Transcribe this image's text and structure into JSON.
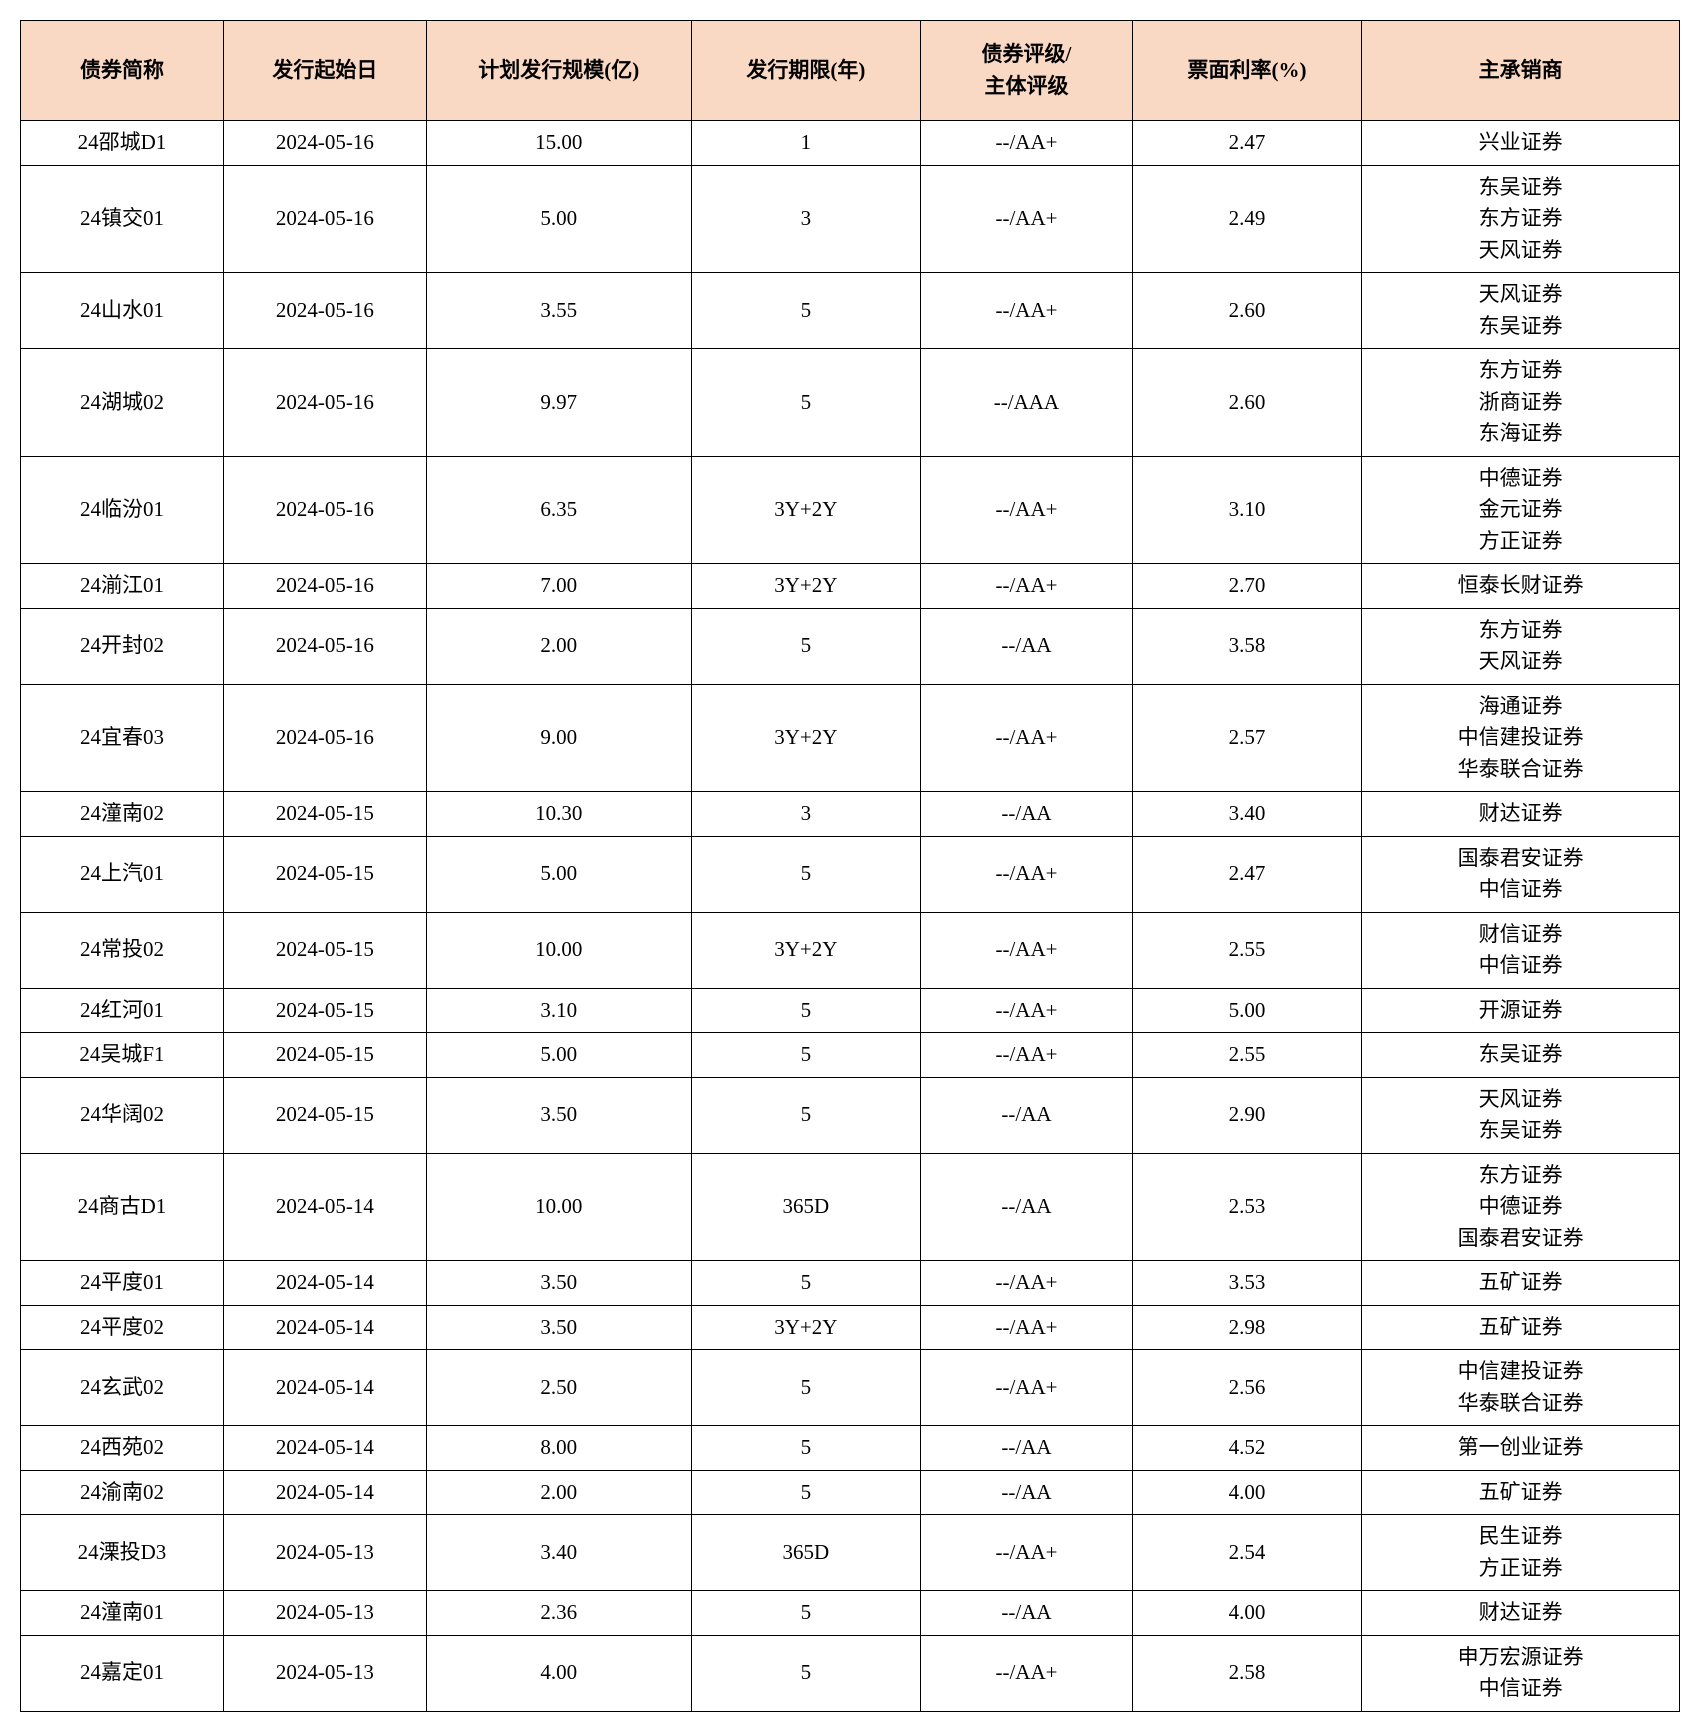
{
  "table": {
    "header_bg": "#fad9c4",
    "border_color": "#000000",
    "font_family": "SimSun",
    "header_fontsize": 21,
    "cell_fontsize": 21,
    "columns": [
      {
        "key": "name",
        "label": "债券简称",
        "width": "11.5%"
      },
      {
        "key": "date",
        "label": "发行起始日",
        "width": "11.5%"
      },
      {
        "key": "scale",
        "label": "计划发行规模(亿)",
        "width": "15%"
      },
      {
        "key": "term",
        "label": "发行期限(年)",
        "width": "13%"
      },
      {
        "key": "rating",
        "label": "债券评级/\n主体评级",
        "width": "12%"
      },
      {
        "key": "rate",
        "label": "票面利率(%)",
        "width": "13%"
      },
      {
        "key": "underwriter",
        "label": "主承销商",
        "width": "18%"
      }
    ],
    "rows": [
      {
        "name": "24邵城D1",
        "date": "2024-05-16",
        "scale": "15.00",
        "term": "1",
        "rating": "--/AA+",
        "rate": "2.47",
        "underwriter": "兴业证券"
      },
      {
        "name": "24镇交01",
        "date": "2024-05-16",
        "scale": "5.00",
        "term": "3",
        "rating": "--/AA+",
        "rate": "2.49",
        "underwriter": "东吴证券\n东方证券\n天风证券"
      },
      {
        "name": "24山水01",
        "date": "2024-05-16",
        "scale": "3.55",
        "term": "5",
        "rating": "--/AA+",
        "rate": "2.60",
        "underwriter": "天风证券\n东吴证券"
      },
      {
        "name": "24湖城02",
        "date": "2024-05-16",
        "scale": "9.97",
        "term": "5",
        "rating": "--/AAA",
        "rate": "2.60",
        "underwriter": "东方证券\n浙商证券\n东海证券"
      },
      {
        "name": "24临汾01",
        "date": "2024-05-16",
        "scale": "6.35",
        "term": "3Y+2Y",
        "rating": "--/AA+",
        "rate": "3.10",
        "underwriter": "中德证券\n金元证券\n方正证券"
      },
      {
        "name": "24湔江01",
        "date": "2024-05-16",
        "scale": "7.00",
        "term": "3Y+2Y",
        "rating": "--/AA+",
        "rate": "2.70",
        "underwriter": "恒泰长财证券"
      },
      {
        "name": "24开封02",
        "date": "2024-05-16",
        "scale": "2.00",
        "term": "5",
        "rating": "--/AA",
        "rate": "3.58",
        "underwriter": "东方证券\n天风证券"
      },
      {
        "name": "24宜春03",
        "date": "2024-05-16",
        "scale": "9.00",
        "term": "3Y+2Y",
        "rating": "--/AA+",
        "rate": "2.57",
        "underwriter": "海通证券\n中信建投证券\n华泰联合证券"
      },
      {
        "name": "24潼南02",
        "date": "2024-05-15",
        "scale": "10.30",
        "term": "3",
        "rating": "--/AA",
        "rate": "3.40",
        "underwriter": "财达证券"
      },
      {
        "name": "24上汽01",
        "date": "2024-05-15",
        "scale": "5.00",
        "term": "5",
        "rating": "--/AA+",
        "rate": "2.47",
        "underwriter": "国泰君安证券\n中信证券"
      },
      {
        "name": "24常投02",
        "date": "2024-05-15",
        "scale": "10.00",
        "term": "3Y+2Y",
        "rating": "--/AA+",
        "rate": "2.55",
        "underwriter": "财信证券\n中信证券"
      },
      {
        "name": "24红河01",
        "date": "2024-05-15",
        "scale": "3.10",
        "term": "5",
        "rating": "--/AA+",
        "rate": "5.00",
        "underwriter": "开源证券"
      },
      {
        "name": "24吴城F1",
        "date": "2024-05-15",
        "scale": "5.00",
        "term": "5",
        "rating": "--/AA+",
        "rate": "2.55",
        "underwriter": "东吴证券"
      },
      {
        "name": "24华阔02",
        "date": "2024-05-15",
        "scale": "3.50",
        "term": "5",
        "rating": "--/AA",
        "rate": "2.90",
        "underwriter": "天风证券\n东吴证券"
      },
      {
        "name": "24商古D1",
        "date": "2024-05-14",
        "scale": "10.00",
        "term": "365D",
        "rating": "--/AA",
        "rate": "2.53",
        "underwriter": "东方证券\n中德证券\n国泰君安证券"
      },
      {
        "name": "24平度01",
        "date": "2024-05-14",
        "scale": "3.50",
        "term": "5",
        "rating": "--/AA+",
        "rate": "3.53",
        "underwriter": "五矿证券"
      },
      {
        "name": "24平度02",
        "date": "2024-05-14",
        "scale": "3.50",
        "term": "3Y+2Y",
        "rating": "--/AA+",
        "rate": "2.98",
        "underwriter": "五矿证券"
      },
      {
        "name": "24玄武02",
        "date": "2024-05-14",
        "scale": "2.50",
        "term": "5",
        "rating": "--/AA+",
        "rate": "2.56",
        "underwriter": "中信建投证券\n华泰联合证券"
      },
      {
        "name": "24西苑02",
        "date": "2024-05-14",
        "scale": "8.00",
        "term": "5",
        "rating": "--/AA",
        "rate": "4.52",
        "underwriter": "第一创业证券"
      },
      {
        "name": "24渝南02",
        "date": "2024-05-14",
        "scale": "2.00",
        "term": "5",
        "rating": "--/AA",
        "rate": "4.00",
        "underwriter": "五矿证券"
      },
      {
        "name": "24溧投D3",
        "date": "2024-05-13",
        "scale": "3.40",
        "term": "365D",
        "rating": "--/AA+",
        "rate": "2.54",
        "underwriter": "民生证券\n方正证券"
      },
      {
        "name": "24潼南01",
        "date": "2024-05-13",
        "scale": "2.36",
        "term": "5",
        "rating": "--/AA",
        "rate": "4.00",
        "underwriter": "财达证券"
      },
      {
        "name": "24嘉定01",
        "date": "2024-05-13",
        "scale": "4.00",
        "term": "5",
        "rating": "--/AA+",
        "rate": "2.58",
        "underwriter": "申万宏源证券\n中信证券"
      }
    ]
  }
}
